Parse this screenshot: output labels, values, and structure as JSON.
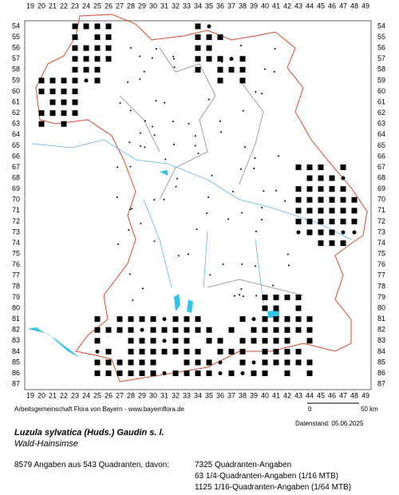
{
  "map": {
    "x_labels": [
      19,
      20,
      21,
      22,
      23,
      24,
      25,
      26,
      27,
      28,
      29,
      30,
      31,
      32,
      33,
      34,
      35,
      36,
      37,
      38,
      39,
      40,
      41,
      42,
      43,
      44,
      45,
      46,
      47,
      48,
      49
    ],
    "y_labels": [
      54,
      55,
      56,
      57,
      58,
      59,
      60,
      61,
      62,
      63,
      64,
      65,
      66,
      67,
      68,
      69,
      70,
      71,
      72,
      73,
      74,
      75,
      76,
      77,
      78,
      79,
      80,
      81,
      82,
      83,
      84,
      85,
      86,
      87
    ],
    "credit": "Arbeitsgemeinschaft Flora von Bayern - www.bayernflora.de",
    "scale_start": "0",
    "scale_end": "50 km",
    "date": "Datenstand: 05.06.2025"
  },
  "species": {
    "title": "Luzula sylvatica (Huds.) Gaudin s. l.",
    "subtitle": "Wald-Hainsimse"
  },
  "stats": {
    "summary": "8579 Angaben aus 543 Quadranten, davon:",
    "lines": [
      "7325 Quadranten-Angaben",
      "63 1/4-Quadranten-Angaben (1/16 MTB)",
      "1125 1/16-Quadranten-Angaben (1/64 MTB)"
    ]
  }
}
